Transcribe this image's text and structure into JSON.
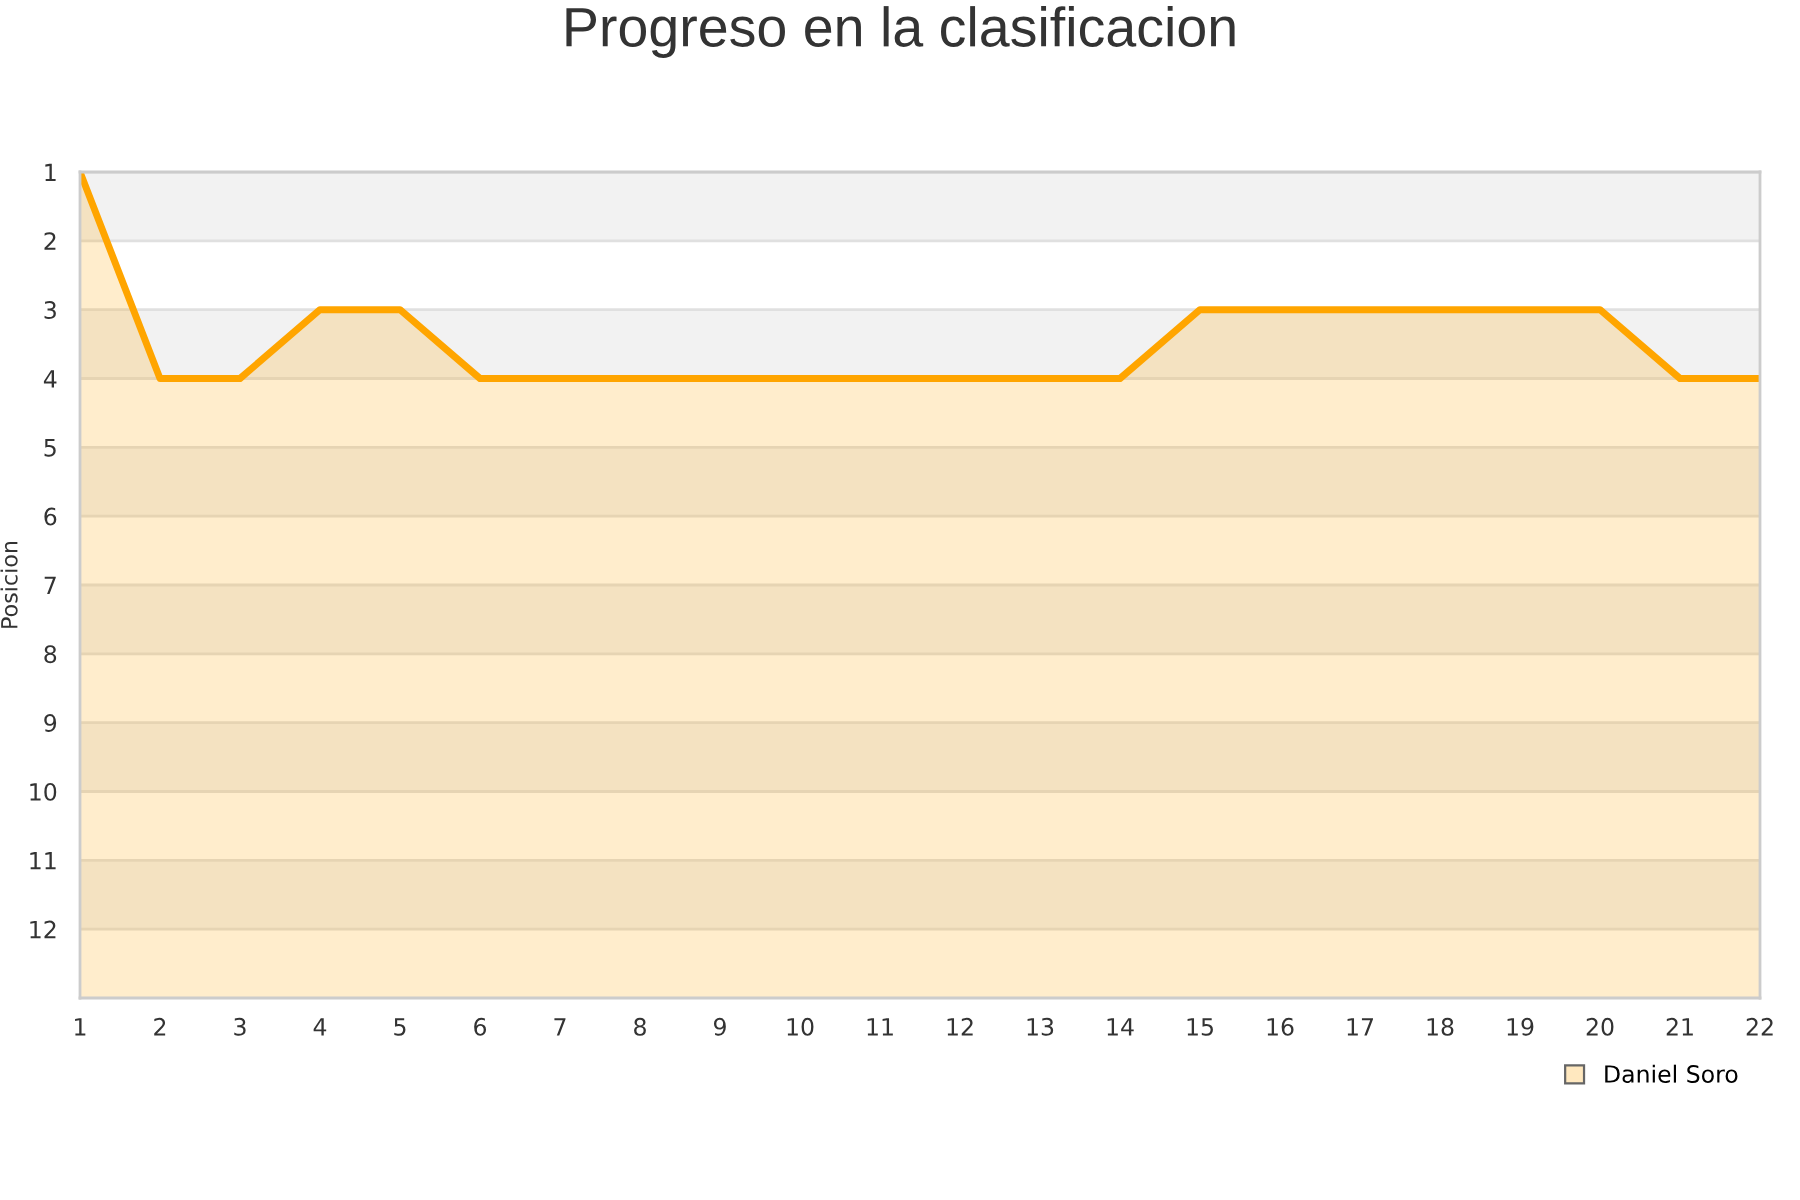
{
  "chart_data": {
    "type": "line",
    "title": "Progreso en la clasificacion",
    "ylabel": "Posicion",
    "x": [
      1,
      2,
      3,
      4,
      5,
      6,
      7,
      8,
      9,
      10,
      11,
      12,
      13,
      14,
      15,
      16,
      17,
      18,
      19,
      20,
      21,
      22
    ],
    "series": [
      {
        "name": "Daniel Soro",
        "color": "#ffa500",
        "values": [
          1,
          4,
          4,
          3,
          3,
          4,
          4,
          4,
          4,
          4,
          4,
          4,
          4,
          4,
          3,
          3,
          3,
          3,
          3,
          3,
          4,
          4
        ],
        "lower": [
          1,
          4,
          4,
          3,
          3,
          4,
          4,
          4,
          4,
          4,
          4,
          4,
          4,
          4,
          3,
          3,
          3,
          3,
          3,
          3,
          4,
          4
        ],
        "upper": [
          13,
          13,
          13,
          13,
          13,
          13,
          13,
          13,
          13,
          13,
          13,
          13,
          13,
          13,
          13,
          13,
          13,
          13,
          13,
          13,
          13,
          13
        ]
      }
    ],
    "xlim": [
      1,
      22
    ],
    "xticks": [
      1,
      2,
      3,
      4,
      5,
      6,
      7,
      8,
      9,
      10,
      11,
      12,
      13,
      14,
      15,
      16,
      17,
      18,
      19,
      20,
      21,
      22
    ],
    "ylim": [
      13,
      1
    ],
    "yticks": [
      1,
      2,
      3,
      4,
      5,
      6,
      7,
      8,
      9,
      10,
      11,
      12
    ],
    "bands": [
      {
        "axis": "y",
        "from": 1,
        "to": 2,
        "color": "#f2f2f2"
      },
      {
        "axis": "y",
        "from": 3,
        "to": 4,
        "color": "#f2f2f2"
      },
      {
        "axis": "y",
        "from": 5,
        "to": 6,
        "color": "#f2f2f2"
      },
      {
        "axis": "y",
        "from": 7,
        "to": 8,
        "color": "#f2f2f2"
      },
      {
        "axis": "y",
        "from": 9,
        "to": 10,
        "color": "#f2f2f2"
      },
      {
        "axis": "y",
        "from": 11,
        "to": 12,
        "color": "#f2f2f2"
      }
    ],
    "grid": "y",
    "legend": "bottom right",
    "marker": "none",
    "line_style": "solid"
  }
}
